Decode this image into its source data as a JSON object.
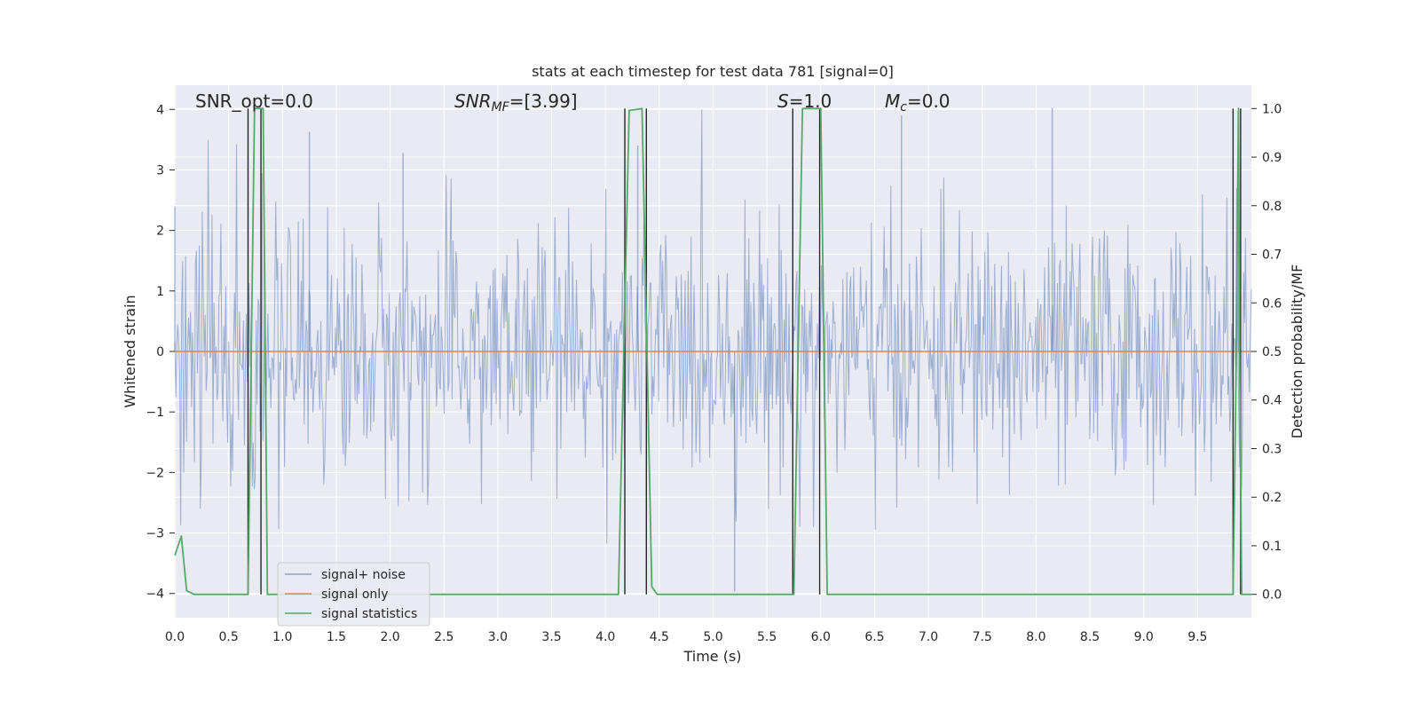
{
  "chart_data": {
    "type": "line",
    "title": "stats at each timestep for test data 781 [signal=0]",
    "xlabel": "Time (s)",
    "ylabel": "Whitened strain",
    "ylabel_right": "Detection probability/MF",
    "xlim": [
      0.0,
      10.0
    ],
    "ylim": [
      -4.4,
      4.4
    ],
    "ylim_right": [
      -0.048,
      1.048
    ],
    "xticks": [
      "0.0",
      "0.5",
      "1.0",
      "1.5",
      "2.0",
      "2.5",
      "3.0",
      "3.5",
      "4.0",
      "4.5",
      "5.0",
      "5.5",
      "6.0",
      "6.5",
      "7.0",
      "7.5",
      "8.0",
      "8.5",
      "9.0",
      "9.5"
    ],
    "yticks": [
      "4",
      "3",
      "2",
      "1",
      "0",
      "−1",
      "−2",
      "−3",
      "−4"
    ],
    "yticks_right": [
      "1.0",
      "0.9",
      "0.8",
      "0.7",
      "0.6",
      "0.5",
      "0.4",
      "0.3",
      "0.2",
      "0.1",
      "0.0"
    ],
    "grid": true,
    "legend_position": "lower-left",
    "annotations": {
      "snr_opt": "SNR_opt=0.0",
      "snr_mf_sym": "SNR",
      "snr_mf_sub": "MF",
      "snr_mf_val": "=[3.99]",
      "s_sym": "S",
      "s_val": "=1.0",
      "mc_sym": "M",
      "mc_sub": "c",
      "mc_val": "=0.0"
    },
    "series": [
      {
        "name": "signal+ noise",
        "color": "#4c72b0",
        "description": "whitened noise, roughly in [-4, 4], sampled densely",
        "envelope_samples": {
          "x": [
            0.0,
            1.25,
            2.12,
            4.3,
            5.2,
            6.75,
            8.15,
            9.88
          ],
          "y": [
            2.4,
            3.63,
            3.28,
            3.4,
            -3.97,
            3.9,
            4.03,
            2.8
          ]
        }
      },
      {
        "name": "signal only",
        "color": "#dd8452",
        "x": [
          0.0,
          10.0
        ],
        "y": [
          0.0,
          0.0
        ]
      },
      {
        "name": "signal statistics",
        "color": "#55a868",
        "axis": "right",
        "x": [
          0.0,
          0.06,
          0.11,
          0.18,
          0.68,
          0.74,
          0.82,
          0.86,
          4.12,
          4.22,
          4.34,
          4.43,
          4.48,
          5.75,
          5.83,
          6.0,
          6.06,
          9.83,
          9.86,
          9.88,
          9.89,
          9.91,
          10.0
        ],
        "y": [
          0.08,
          0.12,
          0.0075,
          0.0,
          0.0,
          1.0,
          1.0,
          0.0,
          0.0,
          0.996,
          1.0,
          0.016,
          0.0,
          0.0,
          1.0,
          1.0,
          0.0,
          0.0,
          0.49,
          1.0,
          0.5,
          0.0,
          0.0
        ]
      }
    ],
    "vertical_markers": {
      "color": "#262626",
      "x": [
        0.68,
        0.8,
        4.18,
        4.38,
        5.74,
        5.99,
        9.83,
        9.9
      ],
      "y_range": [
        0.0,
        1.0
      ]
    }
  }
}
